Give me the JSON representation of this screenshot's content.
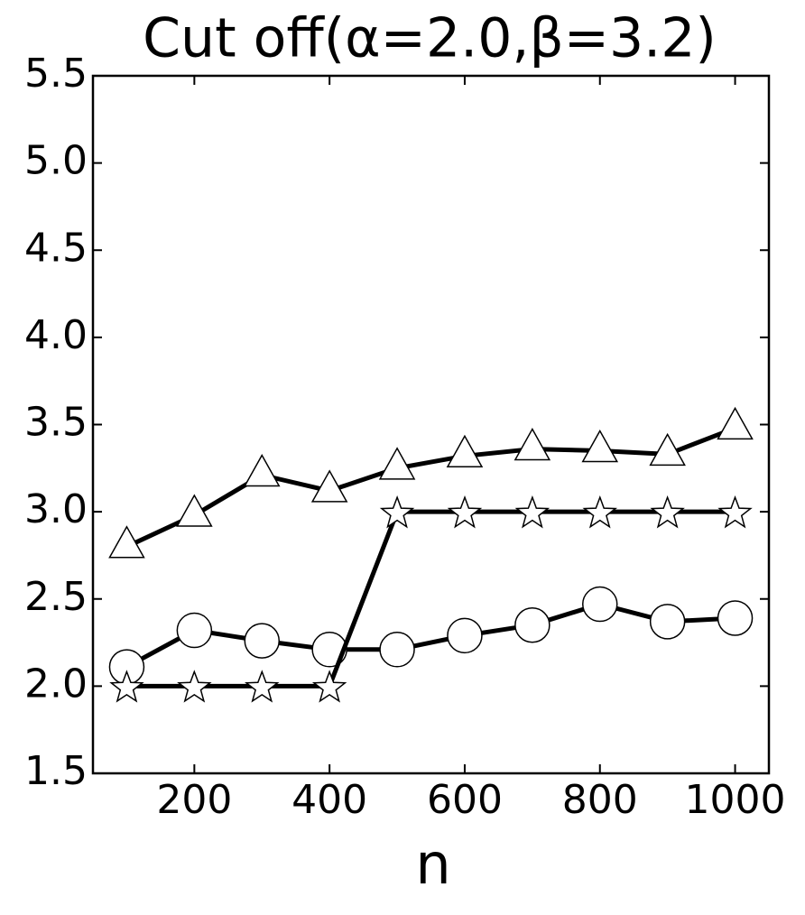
{
  "chart_data": {
    "type": "line",
    "title": "Cut off(α=2.0,β=3.2)",
    "x_label": "n",
    "x": [
      100,
      200,
      300,
      400,
      500,
      600,
      700,
      800,
      900,
      1000
    ],
    "series": [
      {
        "color": "#000000",
        "marker": "triangle",
        "values": [
          2.8,
          2.98,
          3.21,
          3.12,
          3.25,
          3.32,
          3.36,
          3.35,
          3.33,
          3.48
        ]
      },
      {
        "color": "#000000",
        "marker": "circle",
        "values": [
          2.11,
          2.32,
          2.26,
          2.21,
          2.21,
          2.29,
          2.35,
          2.47,
          2.37,
          2.39
        ]
      },
      {
        "color": "#000000",
        "marker": "star",
        "values": [
          2.0,
          2.0,
          2.0,
          2.0,
          3.0,
          3.0,
          3.0,
          3.0,
          3.0,
          3.0
        ]
      }
    ],
    "xlim": [
      50,
      1050
    ],
    "xticks": [
      200,
      400,
      600,
      800,
      1000
    ],
    "ylim": [
      1.5,
      5.5
    ],
    "yticks": [
      1.5,
      {
        "value": 2,
        "label": "2.0"
      },
      2.5,
      {
        "value": 3,
        "label": "3.0"
      },
      3.5,
      {
        "value": 4,
        "label": "4.0"
      },
      4.5,
      {
        "value": 5,
        "label": "5.0"
      },
      5.5
    ],
    "grid": false
  }
}
